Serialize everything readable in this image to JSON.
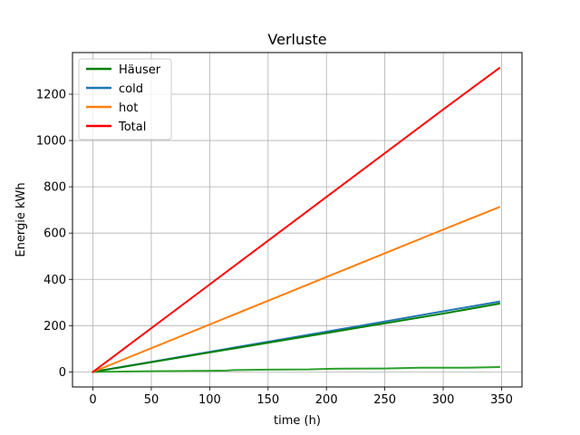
{
  "chart_data": {
    "type": "line",
    "title": "Verluste",
    "xlabel": "time (h)",
    "ylabel": "Energie kWh",
    "xlim": [
      -17.5,
      367.5
    ],
    "ylim": [
      -65,
      1380
    ],
    "xticks": [
      0,
      50,
      100,
      150,
      200,
      250,
      300,
      350
    ],
    "yticks": [
      0,
      200,
      400,
      600,
      800,
      1000,
      1200
    ],
    "grid": true,
    "legend_position": "upper-left",
    "series": [
      {
        "name": "Häuser",
        "color": "#008000",
        "legend": true,
        "points": [
          [
            0,
            0
          ],
          [
            100,
            84
          ],
          [
            200,
            168
          ],
          [
            300,
            252
          ],
          [
            348,
            295
          ]
        ]
      },
      {
        "name": "cold",
        "color": "#1f77b4",
        "legend": true,
        "points": [
          [
            0,
            0
          ],
          [
            100,
            87
          ],
          [
            200,
            174
          ],
          [
            300,
            262
          ],
          [
            348,
            304
          ]
        ]
      },
      {
        "name": "hot",
        "color": "#ff7f0e",
        "legend": true,
        "points": [
          [
            0,
            0
          ],
          [
            100,
            205
          ],
          [
            200,
            410
          ],
          [
            300,
            615
          ],
          [
            348,
            712
          ]
        ]
      },
      {
        "name": "Total",
        "color": "#ff0000",
        "legend": true,
        "points": [
          [
            0,
            0
          ],
          [
            100,
            378
          ],
          [
            200,
            756
          ],
          [
            300,
            1134
          ],
          [
            348,
            1313
          ]
        ]
      },
      {
        "name": "",
        "color": "#2ca02c",
        "legend": false,
        "points": [
          [
            0,
            0
          ],
          [
            50,
            3
          ],
          [
            100,
            5
          ],
          [
            115,
            6
          ],
          [
            120,
            8
          ],
          [
            150,
            10
          ],
          [
            185,
            11
          ],
          [
            205,
            14
          ],
          [
            250,
            15
          ],
          [
            280,
            18
          ],
          [
            320,
            18
          ],
          [
            348,
            21
          ]
        ]
      }
    ]
  }
}
